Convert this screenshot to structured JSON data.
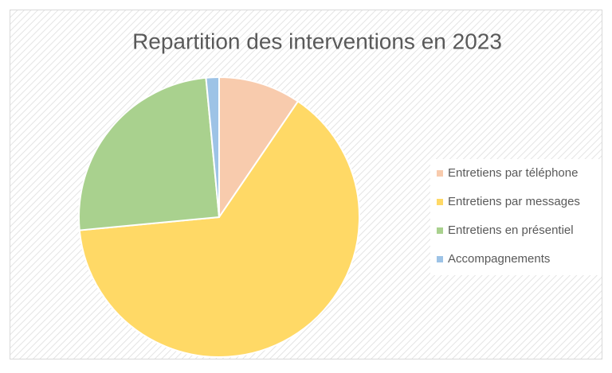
{
  "chart_data": {
    "type": "pie",
    "title": "Repartition des interventions en 2023",
    "categories": [
      "Entretiens par téléphone",
      "Entretiens par messages",
      "Entretiens en présentiel",
      "Accompagnements"
    ],
    "values": [
      9.5,
      64,
      25,
      1.5
    ],
    "colors": [
      "#f8cbad",
      "#ffd966",
      "#a9d18e",
      "#9dc3e6"
    ],
    "legend": "right"
  }
}
